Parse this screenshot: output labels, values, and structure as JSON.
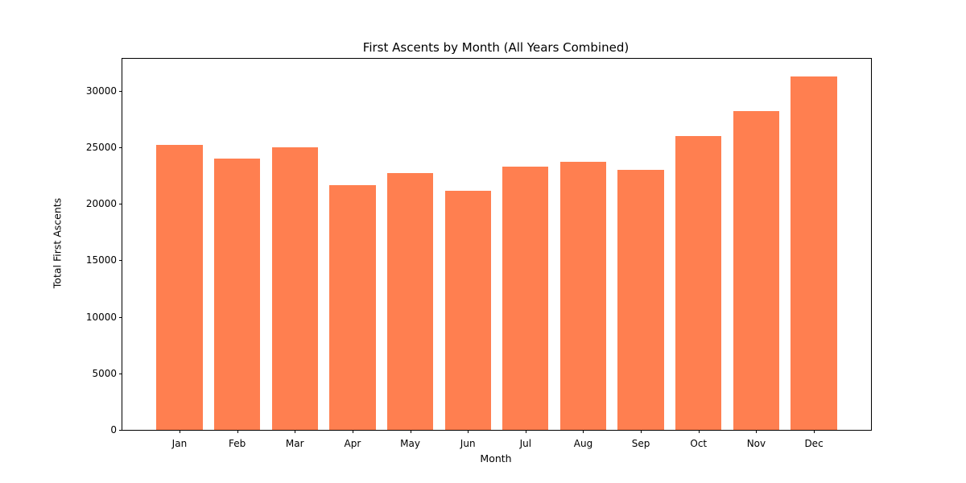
{
  "chart_data": {
    "type": "bar",
    "title": "First Ascents by Month (All Years Combined)",
    "xlabel": "Month",
    "ylabel": "Total First Ascents",
    "categories": [
      "Jan",
      "Feb",
      "Mar",
      "Apr",
      "May",
      "Jun",
      "Jul",
      "Aug",
      "Sep",
      "Oct",
      "Nov",
      "Dec"
    ],
    "values": [
      25200,
      24050,
      25000,
      21650,
      22700,
      21150,
      23300,
      23700,
      23050,
      26000,
      28200,
      31300
    ],
    "yticks": [
      0,
      5000,
      10000,
      15000,
      20000,
      25000,
      30000
    ],
    "ylim": [
      0,
      32850
    ],
    "bar_color": "#FF7F50",
    "bar_width_fraction": 0.8,
    "grid": false,
    "legend": null,
    "background_color": "#ffffff",
    "frame_color": "#000000",
    "text_color": "#000000"
  }
}
